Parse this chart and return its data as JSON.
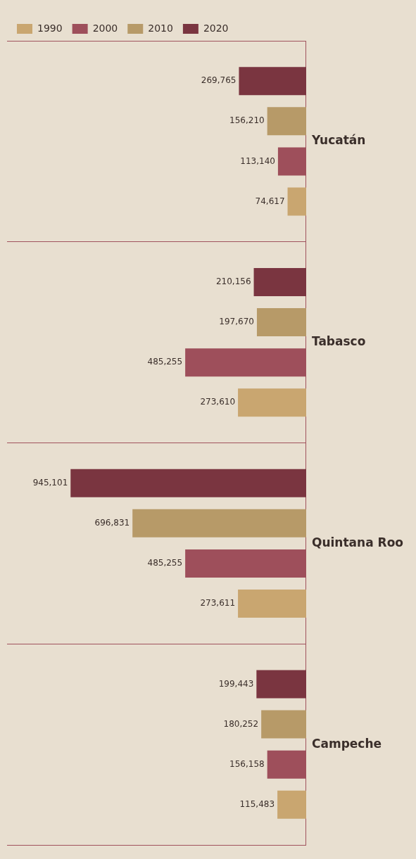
{
  "chart_data": {
    "type": "bar",
    "orientation": "horizontal",
    "categories": [
      "Yucatán",
      "Tabasco",
      "Quintana Roo",
      "Campeche"
    ],
    "series": [
      {
        "name": "1990",
        "color": "#c9a670",
        "values": [
          74617,
          273610,
          273611,
          115483
        ],
        "value_labels": [
          "74,617",
          "273,610",
          "273,611",
          "115,483"
        ]
      },
      {
        "name": "2000",
        "color": "#9e4f5b",
        "values": [
          113140,
          485255,
          485255,
          156158
        ],
        "value_labels": [
          "113,140",
          "485,255",
          "485,255",
          "156,158"
        ]
      },
      {
        "name": "2010",
        "color": "#b79a68",
        "values": [
          156210,
          197670,
          696831,
          180252
        ],
        "value_labels": [
          "156,210",
          "197,670",
          "696,831",
          "180,252"
        ]
      },
      {
        "name": "2020",
        "color": "#7a3540",
        "values": [
          269765,
          210156,
          945101,
          199443
        ],
        "value_labels": [
          "269,765",
          "210,156",
          "945,101",
          "199,443"
        ]
      }
    ],
    "legend": "top left",
    "grid": "y"
  }
}
